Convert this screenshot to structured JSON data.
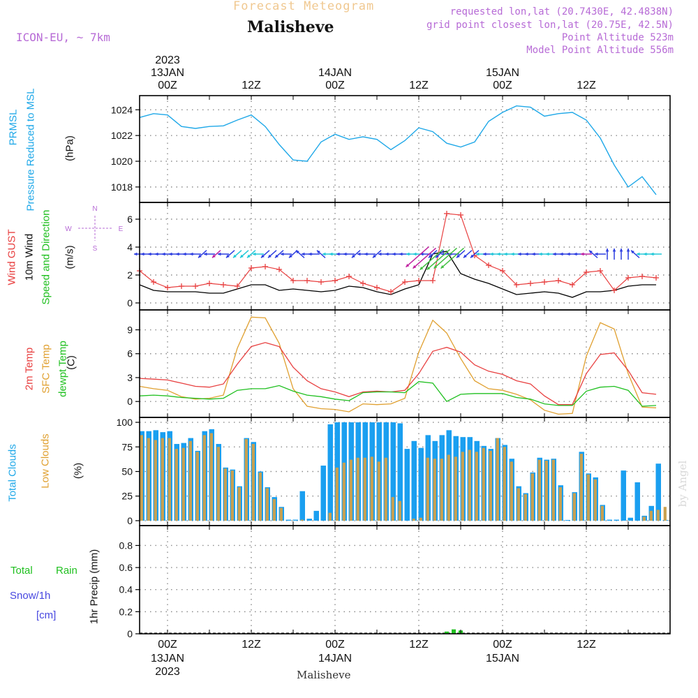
{
  "header": {
    "product": "Forecast Meteogram",
    "location": "Malisheve",
    "model": "ICON-EU, ~ 7km",
    "requested": "requested lon,lat (20.7430E, 42.4838N)",
    "grid_point": "grid point closest lon,lat (20.75E, 42.5N)",
    "point_altitude": "Point Altitude 523m",
    "model_altitude": "Model Point Altitude 556m"
  },
  "footer": {
    "location": "Malisheve",
    "watermark": "by Angel"
  },
  "time_axis": {
    "ticks": [
      "00Z",
      "12Z",
      "00Z",
      "12Z",
      "00Z",
      "12Z"
    ],
    "dates": [
      "13JAN",
      "14JAN",
      "15JAN"
    ],
    "year": "2023"
  },
  "panel_labels": {
    "pressure": [
      "PRMSL",
      "Pressure Reduced to MSL",
      "(hPa)"
    ],
    "wind": [
      "Wind GUST",
      "10m Wind",
      "Speed and Direction",
      "(m/s)"
    ],
    "compass": {
      "n": "N",
      "s": "S",
      "w": "W",
      "e": "E"
    },
    "temp": [
      "2m Temp",
      "SFC Temp",
      "dewpt Temp",
      "(C)"
    ],
    "clouds": [
      "Total Clouds",
      "Low Clouds",
      "(%)"
    ],
    "precip": [
      "Total",
      "Rain",
      "Snow/1h",
      "[cm]",
      "1hr Precip (mm)"
    ]
  },
  "colors": {
    "pressure": "#1fa8e8",
    "gust": "#e84040",
    "wind": "#000000",
    "arrow_blue": "#2c3de0",
    "arrow_cyan": "#20c8d8",
    "arrow_magenta": "#c020a0",
    "arrow_green": "#40c040",
    "temp": "#e84040",
    "sfc": "#e0a030",
    "dewpt": "#20c020",
    "total_cloud": "#1a9ff0",
    "low_cloud": "#c8a050",
    "rain": "#20c020",
    "label_blue": "#1fa8e8",
    "label_red": "#e84040",
    "label_green": "#20c020",
    "label_orange": "#e0a030",
    "label_snow": "#4848e0"
  },
  "chart_data": [
    {
      "type": "line",
      "title": "PRMSL Pressure Reduced to MSL",
      "ylabel": "(hPa)",
      "ylim": [
        1016.8,
        1025.1
      ],
      "yticks": [
        1018,
        1020,
        1022,
        1024
      ],
      "x_hours": [
        -4,
        -2,
        0,
        2,
        4,
        6,
        8,
        10,
        12,
        14,
        16,
        18,
        20,
        22,
        24,
        26,
        28,
        30,
        32,
        34,
        36,
        38,
        40,
        42,
        44,
        46,
        48,
        50,
        52,
        54,
        56,
        58,
        60,
        62,
        64,
        66,
        68,
        70
      ],
      "series": [
        {
          "name": "PRMSL",
          "values": [
            1023.4,
            1023.7,
            1023.6,
            1022.7,
            1022.55,
            1022.7,
            1022.75,
            1023.2,
            1023.6,
            1022.7,
            1021.3,
            1020.1,
            1020.0,
            1021.5,
            1022.1,
            1021.7,
            1021.9,
            1021.7,
            1020.9,
            1021.6,
            1022.6,
            1022.3,
            1021.4,
            1021.1,
            1021.5,
            1023.1,
            1023.8,
            1024.3,
            1024.2,
            1023.5,
            1023.7,
            1023.8,
            1023.2,
            1021.8,
            1019.7,
            1018.0,
            1018.8,
            1017.4
          ]
        }
      ]
    },
    {
      "type": "line",
      "title": "Wind GUST / 10m Wind Speed and Direction",
      "ylabel": "(m/s)",
      "ylim": [
        -0.5,
        7.2
      ],
      "yticks": [
        0,
        2,
        4,
        6
      ],
      "x_hours": [
        -4,
        -2,
        0,
        2,
        4,
        6,
        8,
        10,
        12,
        14,
        16,
        18,
        20,
        22,
        24,
        26,
        28,
        30,
        32,
        34,
        36,
        38,
        40,
        42,
        44,
        46,
        48,
        50,
        52,
        54,
        56,
        58,
        60,
        62,
        64,
        66,
        68,
        70
      ],
      "series": [
        {
          "name": "Wind GUST",
          "values": [
            2.3,
            1.5,
            1.1,
            1.2,
            1.2,
            1.4,
            1.3,
            1.2,
            2.5,
            2.6,
            2.4,
            1.6,
            1.6,
            1.5,
            1.6,
            1.9,
            1.4,
            1.1,
            0.8,
            1.5,
            1.6,
            1.6,
            6.4,
            6.3,
            3.4,
            2.7,
            2.3,
            1.3,
            1.4,
            1.5,
            1.6,
            1.3,
            2.2,
            2.3,
            0.9,
            1.8,
            1.9,
            1.8
          ]
        },
        {
          "name": "10m Wind",
          "values": [
            1.3,
            0.9,
            0.8,
            0.8,
            0.8,
            0.7,
            0.7,
            1.0,
            1.3,
            1.3,
            0.9,
            1.0,
            0.9,
            0.8,
            0.9,
            1.2,
            1.1,
            0.8,
            0.6,
            1.0,
            1.3,
            3.5,
            3.7,
            2.1,
            1.7,
            1.4,
            1.0,
            0.6,
            0.7,
            0.8,
            0.7,
            0.4,
            0.8,
            0.8,
            0.9,
            1.2,
            1.3,
            1.3
          ]
        }
      ],
      "arrows": [
        {
          "h": -4,
          "d": "W",
          "c": "blue"
        },
        {
          "h": -3,
          "d": "W",
          "c": "blue"
        },
        {
          "h": -2,
          "d": "W",
          "c": "blue"
        },
        {
          "h": -1,
          "d": "W",
          "c": "blue"
        },
        {
          "h": 0,
          "d": "W",
          "c": "blue"
        },
        {
          "h": 1,
          "d": "W",
          "c": "blue"
        },
        {
          "h": 2,
          "d": "W",
          "c": "blue"
        },
        {
          "h": 3,
          "d": "W",
          "c": "blue"
        },
        {
          "h": 4,
          "d": "W",
          "c": "blue"
        },
        {
          "h": 5,
          "d": "SW",
          "c": "blue"
        },
        {
          "h": 6,
          "d": "W",
          "c": "blue"
        },
        {
          "h": 7,
          "d": "SW",
          "c": "magenta"
        },
        {
          "h": 8,
          "d": "W",
          "c": "blue"
        },
        {
          "h": 9,
          "d": "SW",
          "c": "blue"
        },
        {
          "h": 10,
          "d": "SW",
          "c": "cyan"
        },
        {
          "h": 11,
          "d": "SW",
          "c": "cyan"
        },
        {
          "h": 12,
          "d": "SW",
          "c": "cyan"
        },
        {
          "h": 13,
          "d": "W",
          "c": "cyan"
        },
        {
          "h": 14,
          "d": "SW",
          "c": "blue"
        },
        {
          "h": 15,
          "d": "SW",
          "c": "blue"
        },
        {
          "h": 16,
          "d": "SW",
          "c": "blue"
        },
        {
          "h": 17,
          "d": "W",
          "c": "blue"
        },
        {
          "h": 18,
          "d": "SW",
          "c": "blue"
        },
        {
          "h": 19,
          "d": "NW",
          "c": "blue"
        },
        {
          "h": 20,
          "d": "W",
          "c": "blue"
        },
        {
          "h": 21,
          "d": "W",
          "c": "blue"
        },
        {
          "h": 22,
          "d": "NW",
          "c": "blue"
        },
        {
          "h": 23,
          "d": "W",
          "c": "cyan"
        },
        {
          "h": 24,
          "d": "W",
          "c": "cyan"
        },
        {
          "h": 25,
          "d": "W",
          "c": "blue"
        },
        {
          "h": 26,
          "d": "W",
          "c": "blue"
        },
        {
          "h": 27,
          "d": "SW",
          "c": "blue"
        },
        {
          "h": 28,
          "d": "W",
          "c": "blue"
        },
        {
          "h": 29,
          "d": "W",
          "c": "blue"
        },
        {
          "h": 30,
          "d": "SW",
          "c": "blue"
        },
        {
          "h": 31,
          "d": "W",
          "c": "blue"
        },
        {
          "h": 32,
          "d": "W",
          "c": "blue"
        },
        {
          "h": 33,
          "d": "W",
          "c": "blue"
        },
        {
          "h": 34,
          "d": "W",
          "c": "blue"
        },
        {
          "h": 35,
          "d": "W",
          "c": "cyan"
        },
        {
          "h": 36,
          "d": "W",
          "c": "cyan"
        },
        {
          "h": 37,
          "d": "W",
          "c": "blue"
        },
        {
          "h": 38,
          "d": "SW",
          "c": "blue"
        },
        {
          "h": 39,
          "d": "SW",
          "c": "blue"
        },
        {
          "h": 40,
          "d": "W",
          "c": "blue"
        },
        {
          "h": 41,
          "d": "W",
          "c": "blue"
        },
        {
          "h": 42,
          "d": "SW",
          "c": "blue"
        },
        {
          "h": 43,
          "d": "SW",
          "c": "blue"
        },
        {
          "h": 44,
          "d": "SW",
          "c": "blue"
        },
        {
          "h": 45,
          "d": "W",
          "c": "cyan"
        },
        {
          "h": 46,
          "d": "W",
          "c": "blue"
        },
        {
          "h": 47,
          "d": "W",
          "c": "cyan"
        },
        {
          "h": 48,
          "d": "W",
          "c": "cyan"
        },
        {
          "h": 49,
          "d": "W",
          "c": "cyan"
        },
        {
          "h": 50,
          "d": "W",
          "c": "cyan"
        },
        {
          "h": 51,
          "d": "W",
          "c": "blue"
        },
        {
          "h": 52,
          "d": "W",
          "c": "blue"
        },
        {
          "h": 53,
          "d": "W",
          "c": "blue"
        },
        {
          "h": 54,
          "d": "W",
          "c": "cyan"
        },
        {
          "h": 55,
          "d": "W",
          "c": "cyan"
        },
        {
          "h": 56,
          "d": "W",
          "c": "blue"
        },
        {
          "h": 57,
          "d": "W",
          "c": "blue"
        },
        {
          "h": 58,
          "d": "W",
          "c": "blue"
        },
        {
          "h": 59,
          "d": "W",
          "c": "blue"
        },
        {
          "h": 60,
          "d": "W",
          "c": "magenta"
        },
        {
          "h": 61,
          "d": "NW",
          "c": "blue"
        },
        {
          "h": 62,
          "d": "W",
          "c": "blue"
        },
        {
          "h": 63,
          "d": "N",
          "c": "blue"
        },
        {
          "h": 64,
          "d": "N",
          "c": "blue"
        },
        {
          "h": 65,
          "d": "N",
          "c": "blue"
        },
        {
          "h": 66,
          "d": "N",
          "c": "blue"
        },
        {
          "h": 67,
          "d": "NW",
          "c": "blue"
        },
        {
          "h": 68,
          "d": "W",
          "c": "cyan"
        },
        {
          "h": 69,
          "d": "W",
          "c": "cyan"
        },
        {
          "h": 70,
          "d": "W",
          "c": "cyan"
        }
      ],
      "long_arrows": [
        {
          "h": 34,
          "v": 3.7,
          "d": "SW",
          "c": "magenta"
        },
        {
          "h": 35,
          "v": 3.6,
          "d": "SW",
          "c": "magenta"
        },
        {
          "h": 36,
          "v": 3.5,
          "d": "SW",
          "c": "green"
        },
        {
          "h": 37,
          "v": 3.5,
          "d": "SW",
          "c": "green"
        },
        {
          "h": 38,
          "v": 3.6,
          "d": "SW",
          "c": "green"
        },
        {
          "h": 39,
          "v": 3.6,
          "d": "SW",
          "c": "green"
        }
      ]
    },
    {
      "type": "line",
      "title": "2m Temp / SFC Temp / dewpt Temp",
      "ylabel": "(C)",
      "ylim": [
        -2,
        11.5
      ],
      "yticks": [
        0,
        3,
        6,
        9
      ],
      "x_hours": [
        -4,
        -2,
        0,
        2,
        4,
        6,
        8,
        10,
        12,
        14,
        16,
        18,
        20,
        22,
        24,
        26,
        28,
        30,
        32,
        34,
        36,
        38,
        40,
        42,
        44,
        46,
        48,
        50,
        52,
        54,
        56,
        58,
        60,
        62,
        64,
        66,
        68,
        70
      ],
      "series": [
        {
          "name": "2m Temp",
          "values": [
            2.9,
            2.8,
            2.7,
            2.3,
            1.9,
            1.8,
            2.2,
            4.7,
            6.9,
            7.4,
            6.9,
            4.3,
            2.6,
            1.6,
            1.2,
            0.6,
            1.2,
            1.3,
            1.2,
            1.4,
            3.5,
            6.3,
            6.8,
            6.2,
            4.6,
            3.8,
            3.4,
            2.6,
            2.2,
            0.7,
            -0.4,
            -0.4,
            3.5,
            5.9,
            6.1,
            3.9,
            1.1,
            0.9
          ]
        },
        {
          "name": "SFC Temp",
          "values": [
            1.9,
            1.6,
            1.4,
            0.6,
            0.3,
            0.4,
            0.8,
            6.7,
            10.6,
            10.5,
            7.3,
            1.6,
            -0.6,
            -0.9,
            -1.0,
            -1.3,
            -0.3,
            -0.4,
            -0.3,
            0.4,
            6.2,
            10.2,
            8.6,
            5.4,
            2.6,
            1.6,
            1.4,
            0.9,
            0.2,
            -1.1,
            -1.6,
            -1.5,
            5.7,
            9.9,
            9.1,
            3.5,
            -0.7,
            -0.8
          ]
        },
        {
          "name": "dewpt Temp",
          "values": [
            0.7,
            0.8,
            0.7,
            0.5,
            0.4,
            0.3,
            0.4,
            1.4,
            1.6,
            1.6,
            2.0,
            1.3,
            0.8,
            0.6,
            0.3,
            0.1,
            1.1,
            1.2,
            1.2,
            1.1,
            2.5,
            2.3,
            0.0,
            0.9,
            1.0,
            1.0,
            1.0,
            0.5,
            0.3,
            -0.3,
            -0.5,
            -0.5,
            1.3,
            1.8,
            1.9,
            1.4,
            -0.6,
            -0.5
          ]
        }
      ]
    },
    {
      "type": "bar",
      "title": "Total Clouds / Low Clouds",
      "ylabel": "(%)",
      "ylim": [
        -5,
        105
      ],
      "yticks": [
        0,
        25,
        50,
        75,
        100
      ],
      "x_hours": [
        -4,
        -3,
        -2,
        -1,
        0,
        1,
        2,
        3,
        4,
        5,
        6,
        7,
        8,
        9,
        10,
        11,
        12,
        13,
        14,
        15,
        16,
        17,
        18,
        19,
        20,
        21,
        22,
        23,
        24,
        25,
        26,
        27,
        28,
        29,
        30,
        31,
        32,
        33,
        34,
        35,
        36,
        37,
        38,
        39,
        40,
        41,
        42,
        43,
        44,
        45,
        46,
        47,
        48,
        49,
        50,
        51,
        52,
        53,
        54,
        55,
        56,
        57,
        58,
        59,
        60,
        61,
        62,
        63,
        64,
        65,
        66,
        67,
        68,
        69,
        70,
        71
      ],
      "series": [
        {
          "name": "Total Clouds",
          "values": [
            91,
            91,
            92,
            90,
            91,
            78,
            79,
            84,
            71,
            91,
            93,
            78,
            54,
            52,
            35,
            84,
            80,
            50,
            34,
            24,
            14,
            1,
            1,
            30,
            2,
            10,
            56,
            98,
            100,
            100,
            100,
            100,
            100,
            100,
            100,
            100,
            100,
            99,
            73,
            81,
            74,
            87,
            81,
            87,
            92,
            86,
            85,
            85,
            81,
            76,
            73,
            84,
            77,
            63,
            35,
            28,
            49,
            64,
            62,
            63,
            36,
            0,
            29,
            70,
            48,
            44,
            16,
            1,
            1,
            51,
            3,
            39,
            5,
            15,
            58,
            0
          ]
        },
        {
          "name": "Low Clouds",
          "values": [
            87,
            84,
            82,
            84,
            84,
            73,
            74,
            81,
            70,
            87,
            89,
            75,
            53,
            51,
            34,
            83,
            78,
            49,
            33,
            22,
            13,
            0,
            0,
            1,
            0,
            0,
            0,
            8,
            54,
            59,
            62,
            64,
            64,
            65,
            60,
            64,
            24,
            20,
            0,
            2,
            3,
            64,
            63,
            63,
            67,
            65,
            70,
            72,
            70,
            74,
            71,
            84,
            75,
            60,
            33,
            27,
            48,
            62,
            61,
            62,
            34,
            0,
            28,
            68,
            47,
            42,
            15,
            0,
            0,
            0,
            0,
            0,
            4,
            10,
            11,
            14
          ]
        }
      ]
    },
    {
      "type": "bar",
      "title": "1hr Precip (mm)",
      "ylabel": "1hr Precip (mm)",
      "ylim": [
        0,
        0.98
      ],
      "yticks": [
        0,
        0.2,
        0.4,
        0.6,
        0.8
      ],
      "x_hours": [
        40,
        41,
        42
      ],
      "series": [
        {
          "name": "Total Rain",
          "values": [
            0.02,
            0.04,
            0.03
          ]
        }
      ]
    }
  ]
}
